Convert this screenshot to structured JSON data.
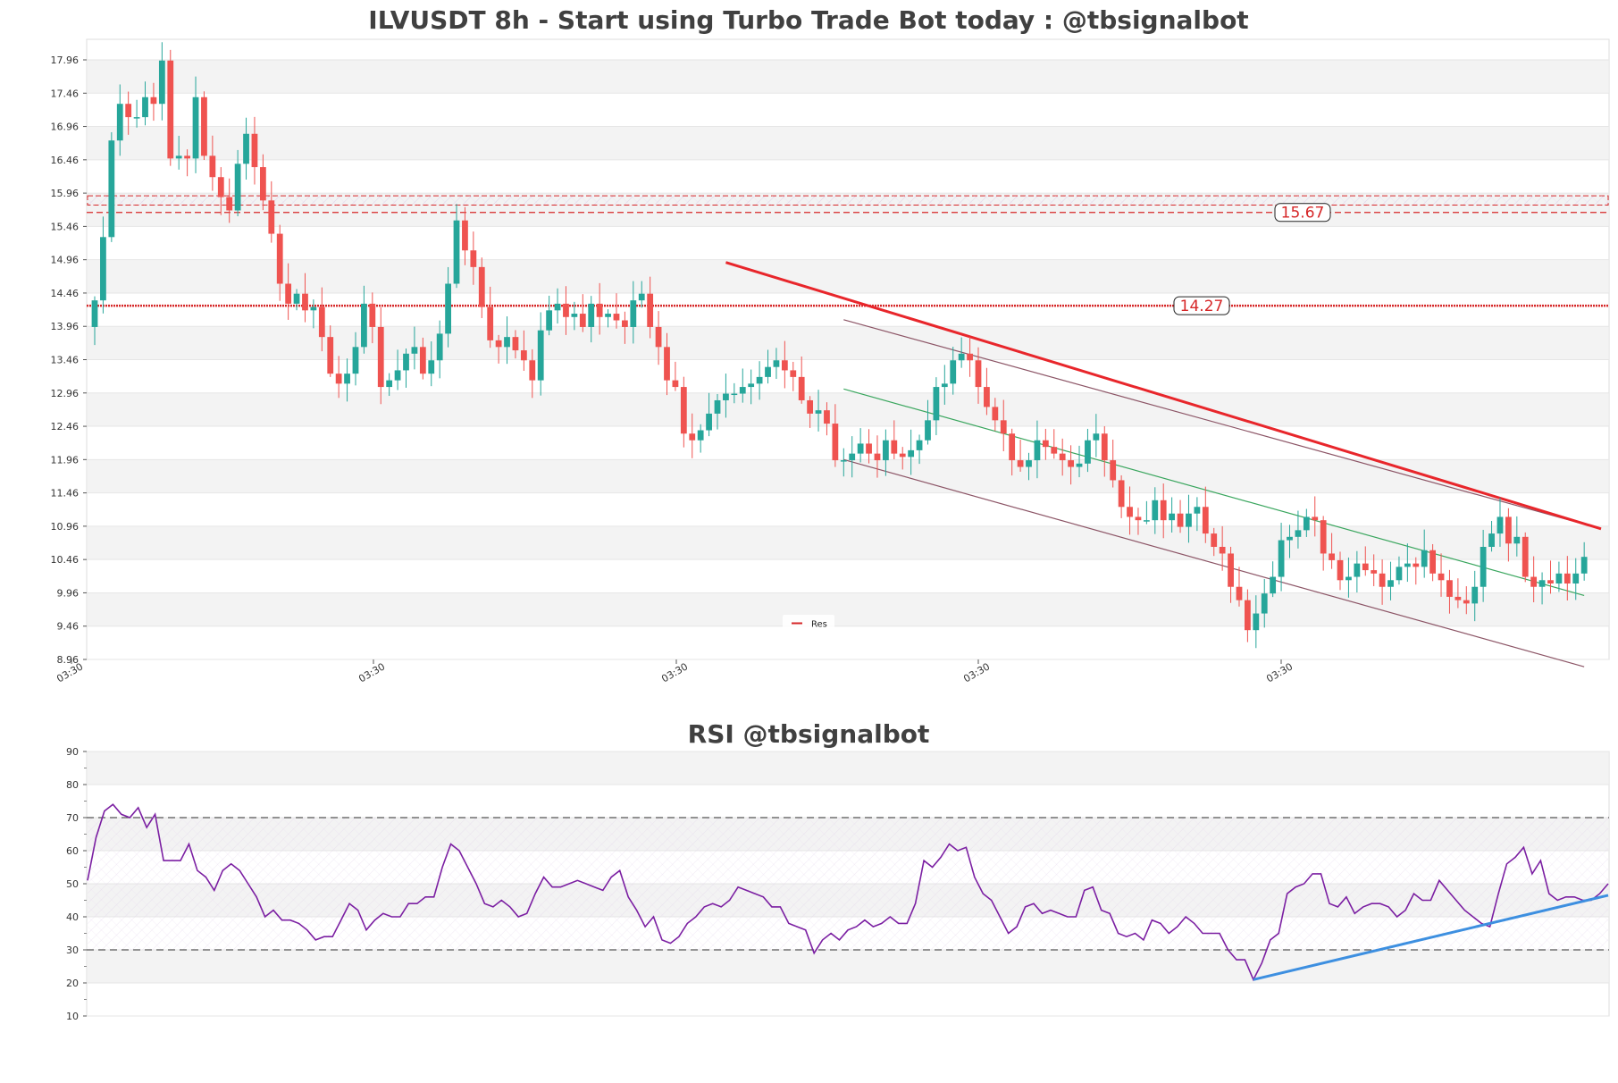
{
  "colors": {
    "bull": "#26a69a",
    "bear": "#ef5350",
    "resistance": "#d62728",
    "trendline_main": "#e8262b",
    "channel": "#8c5566",
    "channel_mid": "#3aa65e",
    "rsi_line": "#7b1fa2",
    "rsi_trend": "#3d8fe0",
    "band_fill": "#f3f3f3",
    "grid": "#e6e6e6"
  },
  "chart_data": [
    {
      "type": "candlestick",
      "title": "ILVUSDT 8h - Start using Turbo Trade Bot today : @tbsignalbot",
      "ylim": [
        8.96,
        18.2
      ],
      "yticks": [
        "17.96",
        "17.46",
        "16.96",
        "16.46",
        "15.96",
        "15.46",
        "14.96",
        "14.46",
        "13.96",
        "13.46",
        "12.96",
        "12.46",
        "11.96",
        "11.46",
        "10.96",
        "10.46",
        "9.96",
        "9.46",
        "8.96"
      ],
      "xticks": [
        "03:30",
        "03:30",
        "03:30",
        "03:30",
        "03:30",
        "03:30"
      ],
      "n_candles": 180,
      "closes": [
        14.35,
        15.3,
        16.75,
        17.3,
        17.1,
        17.1,
        17.4,
        17.3,
        17.95,
        16.48,
        16.52,
        16.48,
        17.4,
        16.52,
        16.2,
        15.9,
        15.7,
        16.4,
        16.85,
        16.35,
        15.85,
        15.35,
        14.6,
        14.3,
        14.45,
        14.2,
        14.25,
        13.8,
        13.25,
        13.1,
        13.25,
        13.65,
        14.3,
        13.95,
        13.05,
        13.15,
        13.3,
        13.55,
        13.65,
        13.25,
        13.45,
        13.85,
        14.6,
        15.55,
        15.1,
        14.85,
        14.25,
        13.75,
        13.65,
        13.8,
        13.6,
        13.45,
        13.15,
        13.9,
        14.2,
        14.3,
        14.1,
        14.15,
        13.95,
        14.3,
        14.1,
        14.15,
        14.05,
        13.95,
        14.35,
        14.45,
        13.95,
        13.65,
        13.15,
        13.05,
        12.35,
        12.25,
        12.4,
        12.65,
        12.85,
        12.95,
        12.95,
        13.05,
        13.1,
        13.2,
        13.35,
        13.45,
        13.3,
        13.2,
        12.85,
        12.65,
        12.7,
        12.5,
        11.95,
        11.95,
        12.05,
        12.2,
        12.05,
        11.95,
        12.25,
        12.05,
        12.0,
        12.1,
        12.25,
        12.55,
        13.05,
        13.1,
        13.45,
        13.55,
        13.45,
        13.05,
        12.75,
        12.55,
        12.35,
        11.95,
        11.85,
        11.95,
        12.25,
        12.15,
        12.05,
        11.95,
        11.85,
        11.9,
        12.25,
        12.35,
        11.95,
        11.65,
        11.25,
        11.1,
        11.05,
        11.05,
        11.35,
        11.05,
        11.15,
        10.95,
        11.15,
        11.25,
        10.85,
        10.65,
        10.55,
        10.05,
        9.85,
        9.4,
        9.65,
        9.95,
        10.2,
        10.75,
        10.8,
        10.9,
        11.1,
        11.05,
        10.55,
        10.45,
        10.15,
        10.2,
        10.4,
        10.3,
        10.25,
        10.05,
        10.15,
        10.35,
        10.4,
        10.35,
        10.6,
        10.25,
        10.15,
        9.9,
        9.85,
        9.8,
        10.05,
        10.65,
        10.85,
        11.1,
        10.7,
        10.8,
        10.2,
        10.05,
        10.15,
        10.1,
        10.25,
        10.1,
        10.25,
        10.5
      ],
      "resistance_levels": [
        {
          "label": "15.67",
          "value": 15.67,
          "style": "dashed"
        },
        {
          "label": "14.27",
          "value": 14.27,
          "style": "dotted"
        }
      ],
      "resistance_band": [
        15.78,
        15.92
      ],
      "trendline": {
        "from": [
          75,
          14.92
        ],
        "to": [
          179,
          10.92
        ]
      },
      "channel_upper": {
        "from": [
          89,
          14.06
        ],
        "to": [
          179,
          10.92
        ]
      },
      "channel_middle": {
        "from": [
          89,
          13.02
        ],
        "to": [
          177,
          9.92
        ]
      },
      "channel_lower": {
        "from": [
          89,
          11.96
        ],
        "to": [
          177,
          8.85
        ]
      },
      "legend": {
        "entries": [
          "Res"
        ],
        "placement": "bottom-center"
      }
    },
    {
      "type": "line",
      "title": "RSI @tbsignalbot",
      "ylim": [
        10,
        90
      ],
      "yticks": [
        "90",
        "80",
        "70",
        "60",
        "50",
        "40",
        "30",
        "20",
        "10"
      ],
      "overbought": 70,
      "oversold": 30,
      "values": [
        51,
        64,
        72,
        74,
        71,
        70,
        73,
        67,
        71,
        57,
        57,
        57,
        62,
        54,
        52,
        48,
        54,
        56,
        54,
        50,
        46,
        40,
        42,
        39,
        39,
        38,
        36,
        33,
        34,
        34,
        39,
        44,
        42,
        36,
        39,
        41,
        40,
        40,
        44,
        44,
        46,
        46,
        55,
        62,
        60,
        55,
        50,
        44,
        43,
        45,
        43,
        40,
        41,
        47,
        52,
        49,
        49,
        50,
        51,
        50,
        49,
        48,
        52,
        54,
        46,
        42,
        37,
        40,
        33,
        32,
        34,
        38,
        40,
        43,
        44,
        43,
        45,
        49,
        48,
        47,
        46,
        43,
        43,
        38,
        37,
        36,
        29,
        33,
        35,
        33,
        36,
        37,
        39,
        37,
        38,
        40,
        38,
        38,
        44,
        57,
        55,
        58,
        62,
        60,
        61,
        52,
        47,
        45,
        40,
        35,
        37,
        43,
        44,
        41,
        42,
        41,
        40,
        40,
        48,
        49,
        42,
        41,
        35,
        34,
        35,
        33,
        39,
        38,
        35,
        37,
        40,
        38,
        35,
        35,
        35,
        30,
        27,
        27,
        21,
        26,
        33,
        35,
        47,
        49,
        50,
        53,
        53,
        44,
        43,
        46,
        41,
        43,
        44,
        44,
        43,
        40,
        42,
        47,
        45,
        45,
        51,
        48,
        45,
        42,
        40,
        38,
        37,
        47,
        56,
        58,
        61,
        53,
        57,
        47,
        45,
        46,
        46,
        45,
        45,
        47,
        50
      ]
    }
  ]
}
